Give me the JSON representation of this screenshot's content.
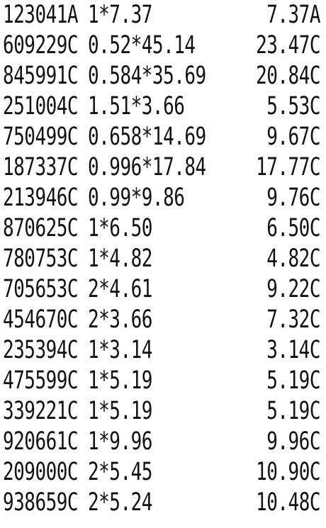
{
  "receipt": {
    "lines": [
      {
        "code": "123041A",
        "calc": "1*7.37",
        "amount": "7.37A"
      },
      {
        "code": "609229C",
        "calc": "0.52*45.14",
        "amount": "23.47C"
      },
      {
        "code": "845991C",
        "calc": "0.584*35.69",
        "amount": "20.84C"
      },
      {
        "code": "251004C",
        "calc": "1.51*3.66",
        "amount": "5.53C"
      },
      {
        "code": "750499C",
        "calc": "0.658*14.69",
        "amount": "9.67C"
      },
      {
        "code": "187337C",
        "calc": "0.996*17.84",
        "amount": "17.77C"
      },
      {
        "code": "213946C",
        "calc": "0.99*9.86",
        "amount": "9.76C"
      },
      {
        "code": "870625C",
        "calc": "1*6.50",
        "amount": "6.50C"
      },
      {
        "code": "780753C",
        "calc": "1*4.82",
        "amount": "4.82C"
      },
      {
        "code": "705653C",
        "calc": "2*4.61",
        "amount": "9.22C"
      },
      {
        "code": "454670C",
        "calc": "2*3.66",
        "amount": "7.32C"
      },
      {
        "code": "235394C",
        "calc": "1*3.14",
        "amount": "3.14C"
      },
      {
        "code": "475599C",
        "calc": "1*5.19",
        "amount": "5.19C"
      },
      {
        "code": "339221C",
        "calc": "1*5.19",
        "amount": "5.19C"
      },
      {
        "code": "920661C",
        "calc": "1*9.96",
        "amount": "9.96C"
      },
      {
        "code": "209000C",
        "calc": "2*5.45",
        "amount": "10.90C"
      },
      {
        "code": "938659C",
        "calc": "2*5.24",
        "amount": "10.48C"
      }
    ]
  }
}
